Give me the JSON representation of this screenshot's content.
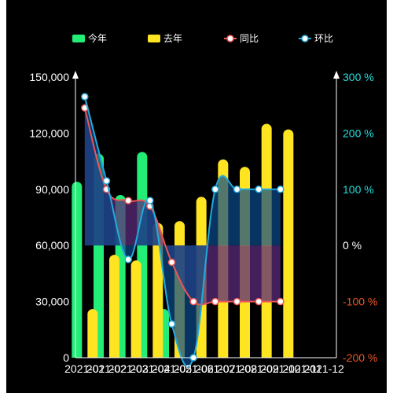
{
  "chart_data": {
    "type": "bar",
    "categories": [
      "2021-01",
      "2021-02",
      "2021-03",
      "2021-04",
      "2021-05",
      "2021-06",
      "2021-07",
      "2021-08",
      "2021-09",
      "2021-10",
      "2021-11",
      "2021-12"
    ],
    "series": [
      {
        "name": "今年",
        "type": "bar",
        "axis": "left",
        "color": "#22ee77",
        "values": [
          94000,
          109000,
          87000,
          110000,
          26000,
          0,
          0,
          0,
          0,
          0,
          0,
          0
        ]
      },
      {
        "name": "去年",
        "type": "bar",
        "axis": "left",
        "color": "#ffe422",
        "values": [
          26000,
          55000,
          52000,
          72000,
          73000,
          86000,
          106000,
          102000,
          125000,
          122000,
          0,
          0
        ]
      },
      {
        "name": "同比",
        "type": "line",
        "axis": "right",
        "color": "#ee5555",
        "values": [
          245,
          100,
          80,
          70,
          -30,
          -100,
          -100,
          -100,
          -100,
          -100,
          null,
          null
        ]
      },
      {
        "name": "环比",
        "type": "line",
        "axis": "right",
        "color": "#22aadd",
        "values": [
          265,
          115,
          -25,
          80,
          -140,
          -200,
          100,
          100,
          100,
          100,
          null,
          null
        ]
      }
    ],
    "y_left": {
      "min": 0,
      "max": 150000,
      "ticks": [
        "0",
        "30,000",
        "60,000",
        "90,000",
        "120,000",
        "150,000"
      ]
    },
    "y_right": {
      "min": -200,
      "max": 300,
      "ticks": [
        "-200 %",
        "-100 %",
        "0 %",
        "100 %",
        "200 %",
        "300 %"
      ]
    },
    "legend_position": "top",
    "colors": {
      "background": "#000000",
      "axis": "#ffffff",
      "right_axis_positive": "#22dddd",
      "right_axis_negative": "#ee5522",
      "area_up": "#5a2a7a",
      "area_down": "#0a4a8a"
    }
  }
}
